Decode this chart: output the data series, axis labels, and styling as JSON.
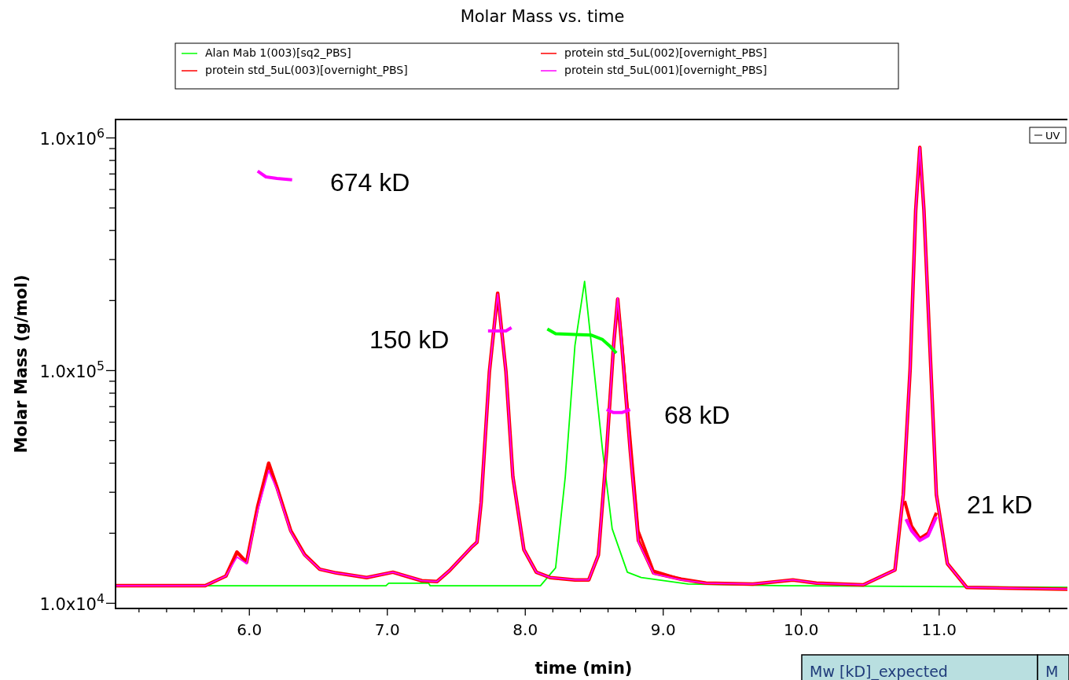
{
  "chart_data": {
    "type": "line",
    "title": "Molar Mass vs. time",
    "xlabel": "time (min)",
    "ylabel": "Molar Mass (g/mol)",
    "log": "y",
    "grid": false,
    "legend": "top",
    "marker": "none",
    "line_style": "solid",
    "xlim": [
      5.03,
      11.93
    ],
    "ylim": [
      9500,
      1200000
    ],
    "xticks": [
      {
        "value": 5.2,
        "label": null
      },
      {
        "value": 5.4,
        "label": null
      },
      {
        "value": 5.6,
        "label": null
      },
      {
        "value": 5.8,
        "label": null
      },
      {
        "value": 6,
        "label": "6.0"
      },
      {
        "value": 6.2,
        "label": null
      },
      {
        "value": 6.4,
        "label": null
      },
      {
        "value": 6.6,
        "label": null
      },
      {
        "value": 6.8,
        "label": null
      },
      {
        "value": 7,
        "label": "7.0"
      },
      {
        "value": 7.2,
        "label": null
      },
      {
        "value": 7.4,
        "label": null
      },
      {
        "value": 7.6,
        "label": null
      },
      {
        "value": 7.8,
        "label": null
      },
      {
        "value": 8,
        "label": "8.0"
      },
      {
        "value": 8.2,
        "label": null
      },
      {
        "value": 8.4,
        "label": null
      },
      {
        "value": 8.6,
        "label": null
      },
      {
        "value": 8.8,
        "label": null
      },
      {
        "value": 9,
        "label": "9.0"
      },
      {
        "value": 9.2,
        "label": null
      },
      {
        "value": 9.4,
        "label": null
      },
      {
        "value": 9.6,
        "label": null
      },
      {
        "value": 9.8,
        "label": null
      },
      {
        "value": 10,
        "label": "10.0"
      },
      {
        "value": 10.2,
        "label": null
      },
      {
        "value": 10.4,
        "label": null
      },
      {
        "value": 10.6,
        "label": null
      },
      {
        "value": 10.8,
        "label": null
      },
      {
        "value": 11,
        "label": "11.0"
      },
      {
        "value": 11.2,
        "label": null
      },
      {
        "value": 11.4,
        "label": null
      },
      {
        "value": 11.6,
        "label": null
      },
      {
        "value": 11.8,
        "label": null
      }
    ],
    "yticks": [
      {
        "value": 10000,
        "label": "1.0x10$^{4}$"
      },
      {
        "value": 20000,
        "label": null
      },
      {
        "value": 30000,
        "label": null
      },
      {
        "value": 40000,
        "label": null
      },
      {
        "value": 50000,
        "label": null
      },
      {
        "value": 60000,
        "label": null
      },
      {
        "value": 70000,
        "label": null
      },
      {
        "value": 80000,
        "label": null
      },
      {
        "value": 90000,
        "label": null
      },
      {
        "value": 100000,
        "label": "1.0x10$^{5}$"
      },
      {
        "value": 200000,
        "label": null
      },
      {
        "value": 300000,
        "label": null
      },
      {
        "value": 400000,
        "label": null
      },
      {
        "value": 500000,
        "label": null
      },
      {
        "value": 600000,
        "label": null
      },
      {
        "value": 700000,
        "label": null
      },
      {
        "value": 800000,
        "label": null
      },
      {
        "value": 900000,
        "label": null
      },
      {
        "value": 1000000,
        "label": "1.0x10$^{6}$"
      }
    ],
    "series": [
      {
        "name": "Alan Mab 1(003)[sq2_PBS]",
        "color": "#00ff00",
        "x": [
          5.7,
          6.99,
          7.01,
          7.3,
          7.31,
          8.11,
          8.22,
          8.29,
          8.36,
          8.43,
          8.48,
          8.56,
          8.63,
          8.74,
          8.84,
          9.18,
          9.88,
          11.93
        ],
        "values": [
          11900,
          11900,
          12200,
          12200,
          11900,
          11900,
          14200,
          35000,
          128000,
          242000,
          128000,
          45600,
          20900,
          13600,
          12900,
          12100,
          11900,
          11700
        ]
      },
      {
        "name": "protein std_5uL(002)[overnight_PBS]",
        "color": "#ff0000",
        "x": [
          8.46,
          8.53,
          8.59,
          8.64,
          8.67,
          8.7,
          8.76,
          8.82,
          8.93,
          9.13
        ],
        "values": [
          12600,
          16100,
          45600,
          128000,
          200000,
          135000,
          53000,
          20500,
          13800,
          12700
        ]
      },
      {
        "name": "protein std_5uL(003)[overnight_PBS]",
        "color": "#ff0000",
        "x": [
          5.03,
          5.68,
          5.83,
          5.91,
          5.98,
          6.06,
          6.14,
          6.2,
          6.3,
          6.4,
          6.51,
          6.63,
          6.74,
          6.85,
          7.04,
          7.25,
          7.36,
          7.45,
          7.61,
          7.65,
          7.68,
          7.74,
          7.8,
          7.86,
          7.91,
          7.99,
          8.08,
          8.18,
          8.36,
          8.46,
          8.53,
          8.59,
          8.64,
          8.67,
          8.7,
          8.76,
          8.82,
          8.93,
          9.13,
          9.31,
          9.65,
          9.94,
          10.11,
          10.45,
          10.68,
          10.74,
          10.79,
          10.83,
          10.86,
          10.89,
          10.94,
          10.98,
          11.06,
          11.2,
          11.93
        ],
        "values": [
          11900,
          11900,
          13100,
          16600,
          15000,
          26000,
          40000,
          31500,
          20500,
          16200,
          14000,
          13500,
          13200,
          12900,
          13600,
          12500,
          12400,
          13800,
          17400,
          18300,
          27100,
          99000,
          215000,
          99000,
          35000,
          17000,
          13600,
          12900,
          12600,
          12600,
          16100,
          45600,
          128000,
          203000,
          128000,
          46000,
          18600,
          13500,
          12700,
          12200,
          12100,
          12600,
          12200,
          12000,
          13900,
          29300,
          102000,
          487000,
          910000,
          487000,
          102000,
          29300,
          14800,
          11700,
          11500
        ]
      },
      {
        "name": "protein std_5uL(001)[overnight_PBS]",
        "color": "#ff00ff",
        "x": [
          5.03,
          5.68,
          5.83,
          5.91,
          5.98,
          6.06,
          6.14,
          6.2,
          6.3,
          6.4,
          6.51,
          6.63,
          6.74,
          6.85,
          7.04,
          7.25,
          7.36,
          7.45,
          7.61,
          7.65,
          7.68,
          7.74,
          7.8,
          7.86,
          7.91,
          7.99,
          8.08,
          8.18,
          8.36,
          8.46,
          8.53,
          8.59,
          8.64,
          8.67,
          8.7,
          8.76,
          8.82,
          8.93,
          9.13,
          9.31,
          9.65,
          9.94,
          10.11,
          10.45,
          10.68,
          10.74,
          10.79,
          10.83,
          10.86,
          10.89,
          10.94,
          10.98,
          11.06,
          11.2,
          11.93
        ],
        "values": [
          11900,
          11900,
          13100,
          15800,
          14800,
          25000,
          37200,
          30900,
          20300,
          16100,
          14000,
          13500,
          13200,
          12900,
          13600,
          12500,
          12400,
          13800,
          17400,
          18300,
          27100,
          99000,
          213000,
          99000,
          35000,
          17000,
          13600,
          12900,
          12600,
          12600,
          16100,
          45600,
          128000,
          205000,
          128000,
          45600,
          18300,
          13400,
          12600,
          12200,
          12100,
          12600,
          12200,
          12000,
          13900,
          29300,
          102000,
          487000,
          910000,
          487000,
          102000,
          29300,
          14800,
          11700,
          11500
        ]
      },
      {
        "color": "#ff00ff",
        "x": [
          6.06,
          6.12,
          6.2,
          6.31
        ],
        "values": [
          720000,
          680000,
          670000,
          660000
        ]
      },
      {
        "color": "#ff00ff",
        "x": [
          7.73,
          7.8,
          7.86,
          7.9
        ],
        "values": [
          148000,
          148000,
          148000,
          153000
        ]
      },
      {
        "color": "#00ff00",
        "x": [
          8.16,
          8.22,
          8.36,
          8.48,
          8.56,
          8.61,
          8.66
        ],
        "values": [
          151000,
          144000,
          143000,
          142000,
          136000,
          128000,
          119000
        ]
      },
      {
        "color": "#ff00ff",
        "x": [
          8.59,
          8.64,
          8.7,
          8.76
        ],
        "values": [
          68000,
          66000,
          66000,
          68000
        ]
      },
      {
        "color": "#ff0000",
        "x": [
          10.75,
          10.8,
          10.86,
          10.92,
          10.98
        ],
        "values": [
          27500,
          21500,
          19000,
          20000,
          24500
        ]
      },
      {
        "color": "#ff00ff",
        "x": [
          10.76,
          10.8,
          10.86,
          10.92,
          10.98
        ],
        "values": [
          23000,
          20500,
          18600,
          19500,
          23500
        ]
      }
    ],
    "annotations": [
      "674 kD",
      "150 kD",
      "68 kD",
      "21 kD",
      "UV",
      "Mw [kD]_expected",
      "M"
    ]
  }
}
